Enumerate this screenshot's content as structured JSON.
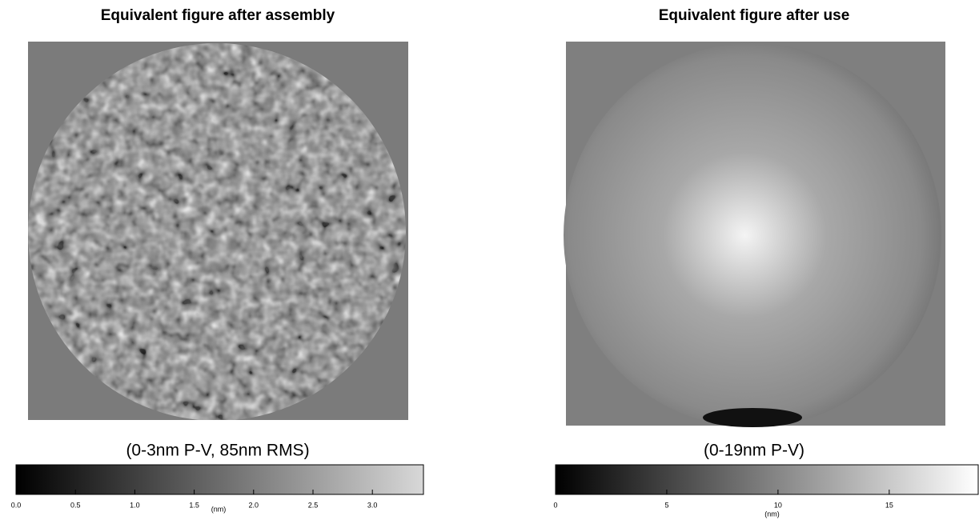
{
  "panels": [
    {
      "title": "Equivalent figure after assembly",
      "caption": "(0-3nm P-V, 85nm RMS)",
      "colorbar": {
        "unit": "(nm)",
        "lim": [
          0,
          3.43
        ],
        "ticks": [
          {
            "value": 0,
            "label": "0.0"
          },
          0.5,
          {
            "value": 1,
            "label": "1.0"
          },
          1.5,
          {
            "value": 2,
            "label": "2.0"
          },
          2.5,
          {
            "value": 3,
            "label": "3.0"
          }
        ]
      }
    },
    {
      "title": "Equivalent figure after use",
      "caption": "(0-19nm P-V)",
      "colorbar": {
        "unit": "(nm)",
        "lim": [
          0,
          19
        ],
        "ticks": [
          0,
          5,
          10,
          15
        ]
      }
    }
  ]
}
